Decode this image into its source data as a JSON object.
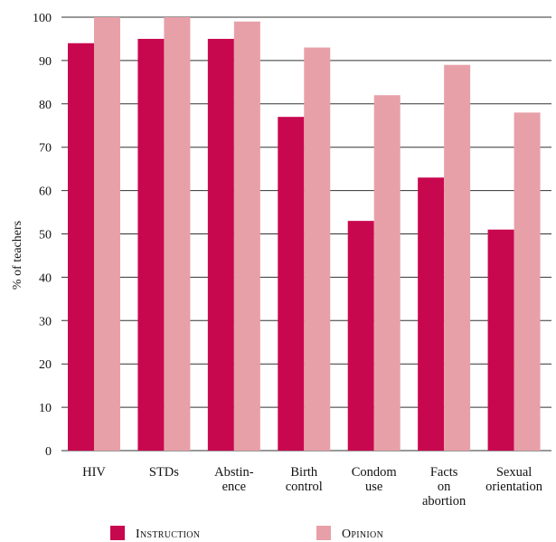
{
  "chart_data": {
    "type": "bar",
    "categories": [
      [
        "HIV"
      ],
      [
        "STDs"
      ],
      [
        "Abstin-",
        "ence"
      ],
      [
        "Birth",
        "control"
      ],
      [
        "Condom",
        "use"
      ],
      [
        "Facts",
        "on",
        "abortion"
      ],
      [
        "Sexual",
        "orientation"
      ]
    ],
    "series": [
      {
        "name": "Instruction",
        "values": [
          94,
          95,
          95,
          77,
          53,
          63,
          51
        ],
        "color": "#c8084e"
      },
      {
        "name": "Opinion",
        "values": [
          100,
          100,
          99,
          93,
          82,
          89,
          78
        ],
        "color": "#e8a0a8"
      }
    ],
    "ylabel": "% of teachers",
    "ylim": [
      0,
      100
    ],
    "yticks": [
      0,
      10,
      20,
      30,
      40,
      50,
      60,
      70,
      80,
      90,
      100
    ],
    "grid": true,
    "legend": "bottom"
  }
}
